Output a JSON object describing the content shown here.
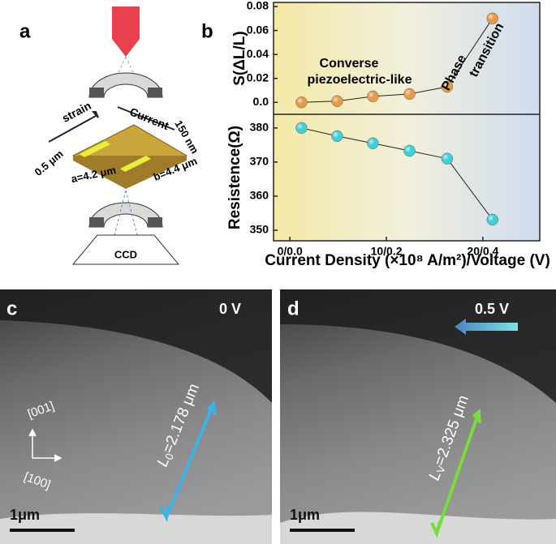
{
  "chart_data": [
    {
      "type": "line",
      "ylabel": "S(ΔL/L)",
      "color": "#e59a4a",
      "x": [
        1.2,
        4.9,
        8.6,
        12.4,
        16.3,
        21.0
      ],
      "values": [
        0.0,
        0.001,
        0.005,
        0.007,
        0.013,
        0.07
      ],
      "xlim": [
        -1.7,
        25.9
      ],
      "ylim": [
        -0.01,
        0.0834
      ],
      "yticks": [
        {
          "value": 0,
          "label": "0.0"
        },
        0.02,
        0.04,
        0.06,
        0.08
      ],
      "annotations": [
        "Converse",
        "piezoelectric-like",
        "Phase",
        "transition"
      ]
    },
    {
      "type": "line",
      "ylabel": "Resistence(Ω)",
      "xlabel": "Current Density (×10⁸ A/m²)/Voltage (V)",
      "color": "#3fcfd6",
      "x": [
        1.2,
        4.9,
        8.6,
        12.4,
        16.3,
        21.0
      ],
      "values": [
        380.0,
        377.6,
        375.5,
        373.3,
        371.0,
        353.1
      ],
      "xlim": [
        -1.7,
        25.9
      ],
      "ylim": [
        346.9,
        384.0
      ],
      "xticks": [
        {
          "value": 0,
          "label": "0/0.0"
        },
        {
          "value": 10,
          "label": "10/0.2"
        },
        {
          "value": 20,
          "label": "20/0.4"
        }
      ],
      "yticks": [
        350,
        360,
        370,
        380
      ]
    }
  ],
  "figure": {
    "panel_labels": [
      "a",
      "b",
      "c",
      "d"
    ],
    "schematic": {
      "strain": "strain",
      "current": "Current",
      "thickness": "150 nm",
      "depth": "0.5 μm",
      "a": "a=4.2 μm",
      "b": "b=4.4 μm",
      "detector": "CCD"
    },
    "micrograph_c": {
      "voltage": "0 V",
      "dir1": "[001]",
      "dir2": "[100]",
      "length": {
        "symbol": "L",
        "subscript": "0",
        "text": "=2.178 μm"
      },
      "scale": "1μm"
    },
    "micrograph_d": {
      "voltage": "0.5 V",
      "length": {
        "symbol": "L",
        "subscript": "V",
        "text": "=2.325 μm"
      },
      "scale": "1μm"
    }
  }
}
